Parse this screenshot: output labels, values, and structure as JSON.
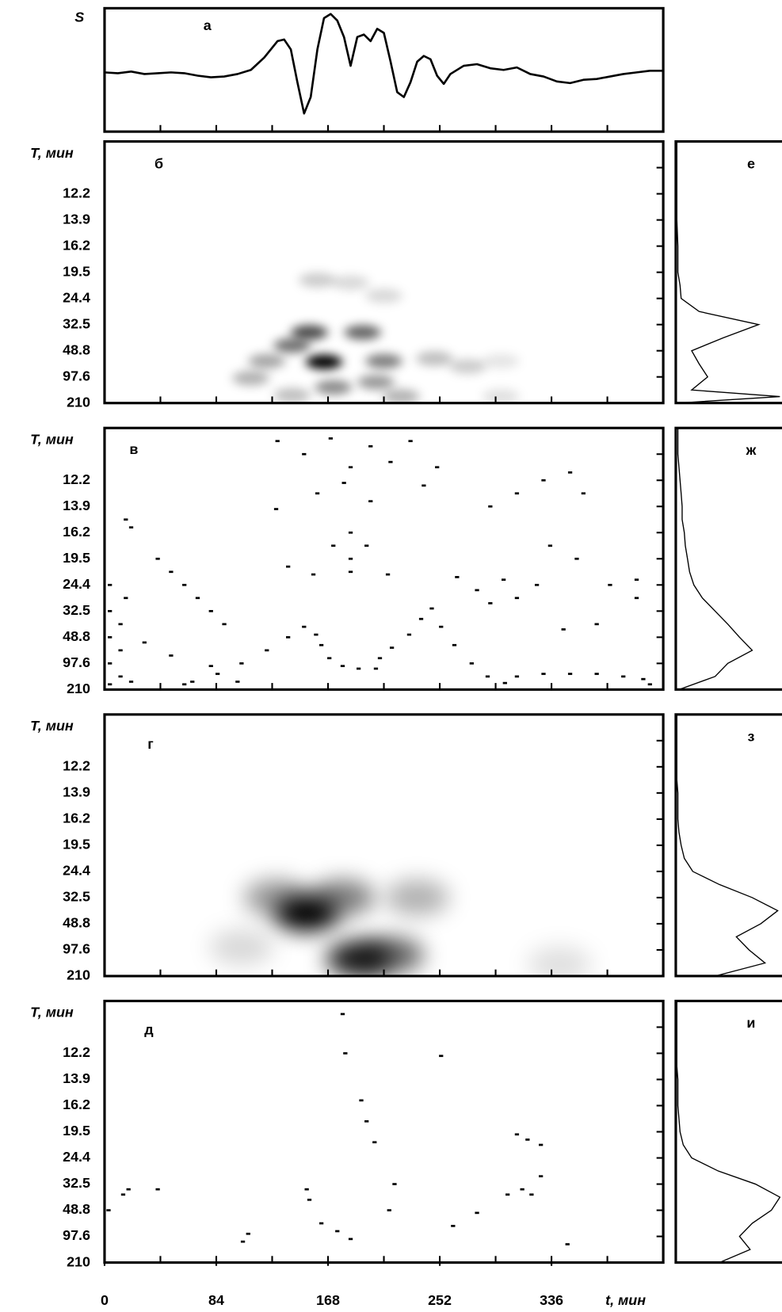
{
  "chart_data": [
    {
      "type": "line",
      "label": "а",
      "ylabel": "S",
      "color": "#000000",
      "x": [
        0,
        10,
        20,
        30,
        40,
        50,
        60,
        70,
        80,
        90,
        100,
        110,
        120,
        130,
        135,
        140,
        145,
        150,
        155,
        160,
        165,
        170,
        175,
        180,
        185,
        190,
        195,
        200,
        205,
        210,
        215,
        220,
        225,
        230,
        235,
        240,
        245,
        250,
        255,
        260,
        270,
        280,
        290,
        300,
        310,
        320,
        330,
        340,
        350,
        360,
        370,
        380,
        390,
        400,
        410,
        420
      ],
      "values": [
        -3,
        -4,
        -2,
        -5,
        -4,
        -3,
        -4,
        -7,
        -9,
        -8,
        -5,
        0,
        15,
        35,
        37,
        25,
        -15,
        -53,
        -33,
        25,
        63,
        68,
        60,
        40,
        5,
        40,
        43,
        35,
        50,
        45,
        10,
        -27,
        -33,
        -15,
        10,
        17,
        13,
        -7,
        -17,
        -5,
        5,
        7,
        2,
        0,
        3,
        -5,
        -8,
        -14,
        -16,
        -12,
        -11,
        -8,
        -5,
        -3,
        -1,
        -1
      ],
      "xlim": [
        0,
        420
      ],
      "ylim": [
        -75,
        75
      ],
      "xminorticks": [
        42,
        84,
        126,
        168,
        210,
        252,
        294,
        336,
        378
      ]
    },
    {
      "type": "heatmap",
      "label": "б",
      "ylabel": "T, мин",
      "color": "#000000",
      "x": [
        165,
        154,
        194,
        141,
        210,
        122,
        110,
        204,
        172,
        160,
        185,
        210,
        248,
        273,
        298,
        223,
        141,
        298
      ],
      "y": [
        1.57,
        2.7,
        2.7,
        2.2,
        1.6,
        1.6,
        0.95,
        0.8,
        0.6,
        4.7,
        4.6,
        4.1,
        1.7,
        1.4,
        1.6,
        0.25,
        0.3,
        0.25
      ],
      "values": [
        1.0,
        0.7,
        0.6,
        0.55,
        0.5,
        0.35,
        0.3,
        0.4,
        0.45,
        0.2,
        0.15,
        0.15,
        0.25,
        0.2,
        0.1,
        0.3,
        0.25,
        0.12
      ],
      "xlim": [
        0,
        420
      ],
      "ylim": [
        0,
        10
      ],
      "xminorticks": [
        42,
        84,
        126,
        168,
        210,
        252,
        294,
        336,
        378
      ],
      "yticks": [
        {
          "value": 0,
          "label": "210"
        },
        {
          "value": 1,
          "label": "97.6"
        },
        {
          "value": 2,
          "label": "48.8"
        },
        {
          "value": 3,
          "label": "32.5"
        },
        {
          "value": 4,
          "label": "24.4"
        },
        {
          "value": 5,
          "label": "19.5"
        },
        {
          "value": 6,
          "label": "16.2"
        },
        {
          "value": 7,
          "label": "13.9"
        },
        {
          "value": 8,
          "label": "12.2"
        }
      ],
      "yminorticks": [
        9
      ]
    },
    {
      "type": "scatter",
      "label": "в",
      "ylabel": "T, мин",
      "color": "#000000",
      "x": [
        66,
        85,
        103,
        122,
        138,
        150,
        159,
        163,
        169,
        179,
        191,
        204,
        207,
        216,
        229,
        238,
        246,
        253,
        263,
        276,
        288,
        301,
        4,
        4,
        4,
        4,
        4,
        12,
        12,
        12,
        16,
        20,
        16,
        20,
        185,
        185,
        185,
        197,
        172,
        157,
        138,
        129,
        213,
        130,
        150,
        170,
        185,
        200,
        215,
        230,
        250,
        160,
        200,
        240,
        180,
        290,
        310,
        330,
        350,
        360,
        335,
        355,
        325,
        310,
        380,
        400,
        400,
        370,
        345,
        265,
        280,
        290,
        300,
        310,
        330,
        350,
        370,
        390,
        405,
        410,
        40,
        50,
        60,
        70,
        80,
        90,
        30,
        50,
        80,
        100,
        60
      ],
      "y": [
        0.3,
        0.6,
        1.0,
        1.5,
        2.0,
        2.4,
        2.1,
        1.7,
        1.2,
        0.9,
        0.8,
        0.8,
        1.2,
        1.6,
        2.1,
        2.7,
        3.1,
        2.4,
        1.7,
        1.0,
        0.5,
        0.25,
        0.2,
        1,
        2,
        3,
        4,
        0.5,
        1.5,
        2.5,
        3.5,
        0.3,
        6.5,
        6.2,
        6,
        5,
        4.5,
        5.5,
        5.5,
        4.4,
        4.7,
        6.9,
        4.4,
        9.5,
        9,
        9.6,
        8.5,
        9.3,
        8.7,
        9.5,
        8.5,
        7.5,
        7.2,
        7.8,
        7.9,
        7,
        7.5,
        8,
        8.3,
        7.5,
        5.5,
        5.0,
        4,
        3.5,
        4,
        3.5,
        4.2,
        2.5,
        2.3,
        4.3,
        3.8,
        3.3,
        4.2,
        0.5,
        0.6,
        0.6,
        0.6,
        0.5,
        0.4,
        0.2,
        5,
        4.5,
        4,
        3.5,
        3,
        2.5,
        1.8,
        1.3,
        0.9,
        0.3,
        0.2
      ],
      "xlim": [
        0,
        420
      ],
      "ylim": [
        0,
        10
      ],
      "xminorticks": [
        42,
        84,
        126,
        168,
        210,
        252,
        294,
        336,
        378
      ],
      "yticks": [
        {
          "value": 0,
          "label": "210"
        },
        {
          "value": 1,
          "label": "97.6"
        },
        {
          "value": 2,
          "label": "48.8"
        },
        {
          "value": 3,
          "label": "32.5"
        },
        {
          "value": 4,
          "label": "24.4"
        },
        {
          "value": 5,
          "label": "19.5"
        },
        {
          "value": 6,
          "label": "16.2"
        },
        {
          "value": 7,
          "label": "13.9"
        },
        {
          "value": 8,
          "label": "12.2"
        }
      ],
      "yminorticks": [
        9
      ]
    },
    {
      "type": "heatmap",
      "label": "г",
      "ylabel": "T, мин",
      "color": "#000000",
      "x": [
        152,
        179,
        191,
        216,
        235,
        129,
        103,
        342
      ],
      "y": [
        2.4,
        3.0,
        0.66,
        0.8,
        3.0,
        3.0,
        1.1,
        0.45
      ],
      "values": [
        1.0,
        0.5,
        0.9,
        0.6,
        0.3,
        0.4,
        0.15,
        0.12
      ],
      "xlim": [
        0,
        420
      ],
      "ylim": [
        0,
        10
      ],
      "xminorticks": [
        42,
        84,
        126,
        168,
        210,
        252,
        294,
        336,
        378
      ],
      "yticks": [
        {
          "value": 0,
          "label": "210"
        },
        {
          "value": 1,
          "label": "97.6"
        },
        {
          "value": 2,
          "label": "48.8"
        },
        {
          "value": 3,
          "label": "32.5"
        },
        {
          "value": 4,
          "label": "24.4"
        },
        {
          "value": 5,
          "label": "19.5"
        },
        {
          "value": 6,
          "label": "16.2"
        },
        {
          "value": 7,
          "label": "13.9"
        },
        {
          "value": 8,
          "label": "12.2"
        }
      ],
      "yminorticks": [
        9
      ]
    },
    {
      "type": "scatter",
      "label": "д",
      "ylabel": "T, мин",
      "xlabel": "t, мин",
      "color": "#000000",
      "x": [
        179,
        181,
        193,
        197,
        203,
        218,
        214,
        253,
        310,
        318,
        328,
        328,
        314,
        321,
        303,
        280,
        262,
        152,
        154,
        163,
        175,
        185,
        108,
        104,
        18,
        14,
        40,
        3,
        348
      ],
      "y": [
        9.5,
        8.0,
        6.2,
        5.4,
        4.6,
        3.0,
        2.0,
        7.9,
        4.9,
        4.7,
        4.5,
        3.3,
        2.8,
        2.6,
        2.6,
        1.9,
        1.4,
        2.8,
        2.4,
        1.5,
        1.2,
        0.9,
        1.1,
        0.8,
        2.8,
        2.6,
        2.8,
        2.0,
        0.7
      ],
      "xlim": [
        0,
        420
      ],
      "ylim": [
        0,
        10
      ],
      "xticks": [
        0,
        84,
        168,
        252,
        336
      ],
      "xminorticks": [
        42,
        84,
        126,
        168,
        210,
        252,
        294,
        336,
        378
      ],
      "yticks": [
        {
          "value": 0,
          "label": "210"
        },
        {
          "value": 1,
          "label": "97.6"
        },
        {
          "value": 2,
          "label": "48.8"
        },
        {
          "value": 3,
          "label": "32.5"
        },
        {
          "value": 4,
          "label": "24.4"
        },
        {
          "value": 5,
          "label": "19.5"
        },
        {
          "value": 6,
          "label": "16.2"
        },
        {
          "value": 7,
          "label": "13.9"
        },
        {
          "value": 8,
          "label": "12.2"
        }
      ],
      "yminorticks": [
        9
      ]
    },
    {
      "type": "profile",
      "label": "е",
      "color": "#000000",
      "y": [
        0,
        0.25,
        0.5,
        1,
        1.5,
        2,
        2.5,
        3,
        3.5,
        4,
        4.5,
        5,
        6,
        7,
        8,
        9,
        10
      ],
      "values": [
        0.02,
        0.98,
        0.15,
        0.3,
        0.22,
        0.15,
        0.45,
        0.78,
        0.22,
        0.05,
        0.04,
        0.02,
        0.02,
        0.01,
        0.01,
        0.01,
        0.01
      ],
      "xlim": [
        0,
        1
      ],
      "ylim": [
        0,
        10
      ]
    },
    {
      "type": "profile",
      "label": "ж",
      "color": "#000000",
      "y": [
        0,
        0.5,
        1,
        1.5,
        2,
        2.5,
        3,
        3.5,
        4,
        4.5,
        5,
        5.5,
        6,
        6.5,
        7,
        7.5,
        8,
        8.5,
        9,
        9.5,
        10
      ],
      "values": [
        0.03,
        0.37,
        0.49,
        0.72,
        0.6,
        0.49,
        0.37,
        0.25,
        0.17,
        0.13,
        0.11,
        0.09,
        0.08,
        0.06,
        0.06,
        0.05,
        0.04,
        0.03,
        0.02,
        0.02,
        0.02
      ],
      "xlim": [
        0,
        1
      ],
      "ylim": [
        0,
        10
      ]
    },
    {
      "type": "profile",
      "label": "з",
      "color": "#000000",
      "y": [
        0,
        0.5,
        1,
        1.5,
        2,
        2.5,
        3,
        3.5,
        4,
        4.5,
        5,
        5.5,
        6,
        6.5,
        7,
        7.5,
        8,
        8.5,
        9,
        9.5,
        10
      ],
      "values": [
        0.37,
        0.84,
        0.69,
        0.57,
        0.8,
        0.96,
        0.72,
        0.41,
        0.16,
        0.08,
        0.05,
        0.03,
        0.02,
        0.02,
        0.02,
        0.01,
        0.01,
        0.01,
        0.01,
        0.01,
        0.01
      ],
      "xlim": [
        0,
        1
      ],
      "ylim": [
        0,
        10
      ]
    },
    {
      "type": "profile",
      "label": "и",
      "color": "#000000",
      "y": [
        0,
        0.5,
        1,
        1.5,
        2,
        2.5,
        3,
        3.5,
        4,
        4.5,
        5,
        5.5,
        6,
        6.5,
        7,
        7.5,
        8,
        8.5,
        9,
        9.5,
        10
      ],
      "values": [
        0.41,
        0.7,
        0.6,
        0.72,
        0.9,
        0.98,
        0.75,
        0.4,
        0.15,
        0.07,
        0.04,
        0.03,
        0.02,
        0.02,
        0.02,
        0.01,
        0.01,
        0.01,
        0.01,
        0.01,
        0.01
      ],
      "xlim": [
        0,
        1
      ],
      "ylim": [
        0,
        10
      ]
    }
  ]
}
